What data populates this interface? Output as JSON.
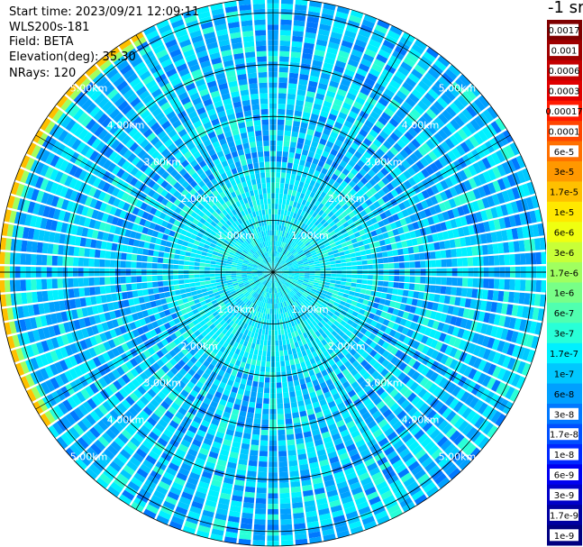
{
  "header": {
    "start_time": "Start time: 2023/09/21 12:09:11",
    "instrument": "WLS200s-181",
    "field": "Field: BETA",
    "elevation": "Elevation(deg): 35.30",
    "nrays": "NRays: 120"
  },
  "colorbar": {
    "title": "-1 sr",
    "labels": [
      "0.0017",
      "0.001",
      "0.0006",
      "0.0003",
      "0.00017",
      "0.0001",
      "6e-5",
      "3e-5",
      "1.7e-5",
      "1e-5",
      "6e-6",
      "3e-6",
      "1.7e-6",
      "1e-6",
      "6e-7",
      "3e-7",
      "1.7e-7",
      "1e-7",
      "6e-8",
      "3e-8",
      "1.7e-8",
      "1e-8",
      "6e-9",
      "3e-9",
      "1.7e-9",
      "1e-9"
    ],
    "colors": [
      "#7f0000",
      "#9e0000",
      "#c40000",
      "#e00000",
      "#ff1a00",
      "#ff4500",
      "#ff7000",
      "#ff9800",
      "#ffc000",
      "#ffe800",
      "#f0ff10",
      "#c8ff38",
      "#a0ff60",
      "#78ff88",
      "#50ffb0",
      "#28ffd8",
      "#00f0ff",
      "#00c8ff",
      "#00a0ff",
      "#0078ff",
      "#0050ff",
      "#0028ff",
      "#0000f0",
      "#0000c8",
      "#0000a0",
      "#000080"
    ],
    "label_colors": {
      "dark": "#ffffff",
      "light": "#000000"
    }
  },
  "chart_data": {
    "type": "ppi",
    "field": "BETA",
    "units": "-1 sr",
    "elevation_deg": 35.3,
    "n_rays": 120,
    "range_rings_km": [
      1,
      2,
      3,
      4,
      5
    ],
    "range_ring_labels": [
      "1.00km",
      "2.00km",
      "3.00km",
      "4.00km",
      "5.00km"
    ],
    "azimuth_spokes_deg": [
      0,
      30,
      60,
      90,
      120,
      150,
      180,
      210,
      240,
      270,
      300,
      330
    ],
    "value_scale": "log",
    "value_range": [
      1e-09,
      0.0017
    ],
    "features": {
      "background_beta_min": 3e-08,
      "background_beta_max": 3e-07,
      "near_field_beta": 1.7e-07,
      "arc_beta_peak": 6e-05,
      "arc_range_km": 5.2,
      "arc_azimuth_deg_start": 235,
      "arc_azimuth_deg_end": 330
    },
    "colors": {
      "ring_line": "#000000",
      "spoke_line": "#000000",
      "background": "#ffffff"
    }
  }
}
